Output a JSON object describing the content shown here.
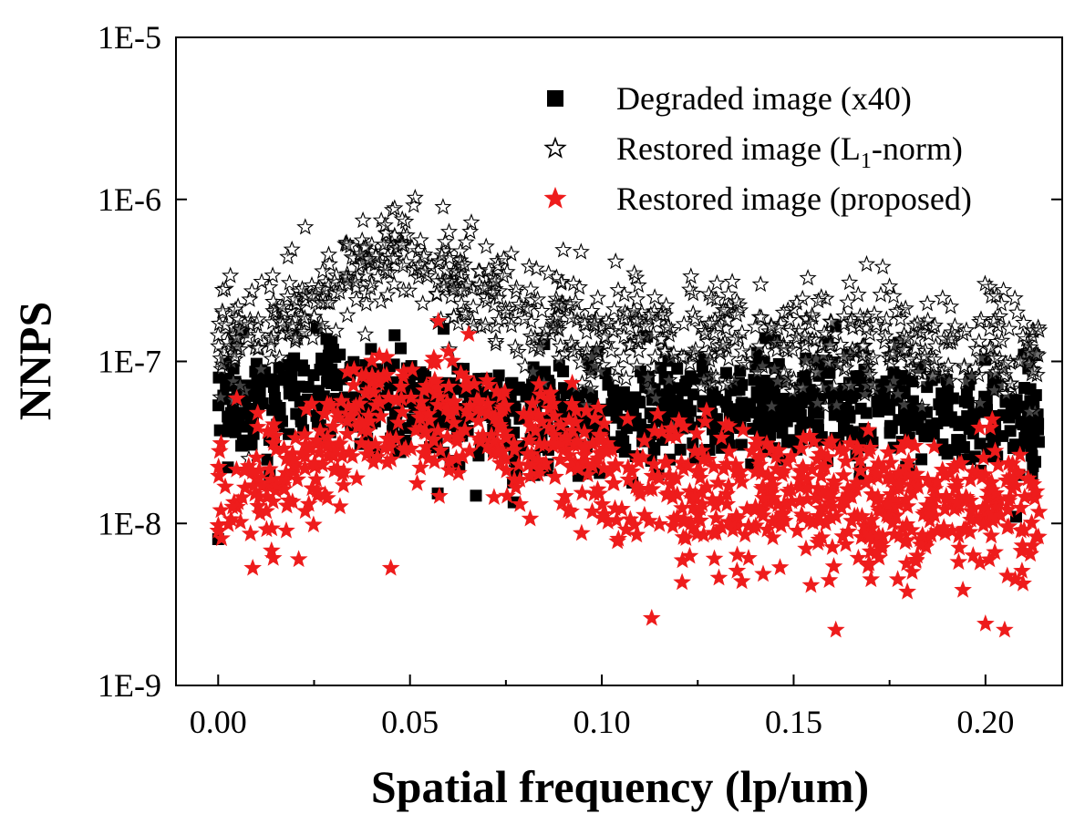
{
  "chart_data": {
    "type": "scatter",
    "title": "",
    "xlabel": "Spatial frequency (lp/um)",
    "ylabel": "NNPS",
    "xlim": [
      -0.011,
      0.22
    ],
    "ylim_log10": [
      -9,
      -5
    ],
    "y_scale": "log",
    "x_ticks": [
      0.0,
      0.05,
      0.1,
      0.15,
      0.2
    ],
    "x_tick_labels": [
      "0.00",
      "0.05",
      "0.10",
      "0.15",
      "0.20"
    ],
    "y_ticks_log10": [
      -9,
      -8,
      -7,
      -6,
      -5
    ],
    "y_tick_labels": [
      "1E-9",
      "1E-8",
      "1E-7",
      "1E-6",
      "1E-5"
    ],
    "legend_position": "top-right",
    "series": [
      {
        "name": "Degraded image (x40)",
        "marker": "filled-square",
        "color": "#000000",
        "n_points": 900,
        "x_range": [
          0.0,
          0.214
        ],
        "profile": [
          {
            "x": 0.0,
            "median": 5.5e-08
          },
          {
            "x": 0.03,
            "median": 6e-08
          },
          {
            "x": 0.06,
            "median": 5.5e-08
          },
          {
            "x": 0.09,
            "median": 4.5e-08
          },
          {
            "x": 0.12,
            "median": 5e-08
          },
          {
            "x": 0.15,
            "median": 5e-08
          },
          {
            "x": 0.18,
            "median": 4.8e-08
          },
          {
            "x": 0.21,
            "median": 4.6e-08
          }
        ],
        "spread_decades": 0.17,
        "highlight_points": [
          {
            "x": 0.0,
            "y": 8e-09
          },
          {
            "x": 0.046,
            "y": 1.45e-07
          },
          {
            "x": 0.213,
            "y": 2.4e-08
          },
          {
            "x": 0.21,
            "y": 1.1e-07
          },
          {
            "x": 0.208,
            "y": 1.1e-08
          },
          {
            "x": 0.161,
            "y": 1.65e-07
          },
          {
            "x": 0.134,
            "y": 1e-08
          },
          {
            "x": 0.077,
            "y": 1.35e-08
          }
        ]
      },
      {
        "name": "Restored image (L",
        "name_subscript": "1",
        "name_suffix": "-norm)",
        "marker": "open-star",
        "color": "#000000",
        "n_points": 800,
        "x_range": [
          0.0,
          0.214
        ],
        "profile": [
          {
            "x": 0.0,
            "median": 1.3e-07
          },
          {
            "x": 0.02,
            "median": 2e-07
          },
          {
            "x": 0.04,
            "median": 4.5e-07
          },
          {
            "x": 0.05,
            "median": 5e-07
          },
          {
            "x": 0.07,
            "median": 2.5e-07
          },
          {
            "x": 0.1,
            "median": 1.5e-07
          },
          {
            "x": 0.15,
            "median": 1.3e-07
          },
          {
            "x": 0.21,
            "median": 1.2e-07
          }
        ],
        "spread_decades": 0.17,
        "highlight_points": [
          {
            "x": 0.0,
            "y": 1.45e-07
          },
          {
            "x": 0.046,
            "y": 8.8e-07
          },
          {
            "x": 0.066,
            "y": 7.2e-07
          },
          {
            "x": 0.134,
            "y": 3.1e-07
          },
          {
            "x": 0.175,
            "y": 2.9e-07
          },
          {
            "x": 0.214,
            "y": 1.55e-07
          },
          {
            "x": 0.008,
            "y": 2.5e-08
          }
        ]
      },
      {
        "name": "Restored image (proposed)",
        "marker": "filled-star",
        "color": "#ee1c1c",
        "n_points": 900,
        "x_range": [
          0.0,
          0.214
        ],
        "profile": [
          {
            "x": 0.0,
            "median": 1.3e-08
          },
          {
            "x": 0.02,
            "median": 2e-08
          },
          {
            "x": 0.04,
            "median": 4.5e-08
          },
          {
            "x": 0.06,
            "median": 5.5e-08
          },
          {
            "x": 0.08,
            "median": 3.5e-08
          },
          {
            "x": 0.11,
            "median": 1.8e-08
          },
          {
            "x": 0.14,
            "median": 1.5e-08
          },
          {
            "x": 0.17,
            "median": 1.4e-08
          },
          {
            "x": 0.21,
            "median": 1.2e-08
          }
        ],
        "spread_decades": 0.2,
        "highlight_points": [
          {
            "x": 0.0,
            "y": 9e-09
          },
          {
            "x": 0.009,
            "y": 5.3e-09
          },
          {
            "x": 0.021,
            "y": 6e-09
          },
          {
            "x": 0.045,
            "y": 5.3e-09
          },
          {
            "x": 0.113,
            "y": 2.6e-09
          },
          {
            "x": 0.161,
            "y": 2.2e-09
          },
          {
            "x": 0.2,
            "y": 2.4e-09
          },
          {
            "x": 0.205,
            "y": 2.2e-09
          },
          {
            "x": 0.06,
            "y": 1.15e-07
          }
        ]
      }
    ]
  }
}
